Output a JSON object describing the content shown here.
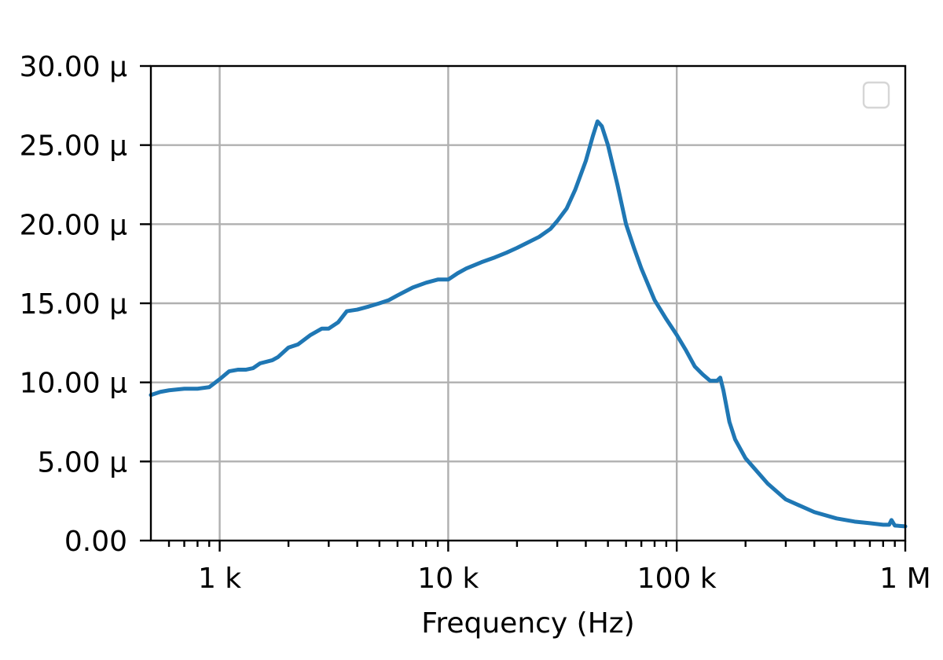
{
  "chart_data": {
    "type": "line",
    "title": "",
    "xlabel": "Frequency (Hz)",
    "ylabel": "",
    "x_scale": "log",
    "xlim": [
      500,
      1000000
    ],
    "ylim": [
      0,
      30
    ],
    "grid": true,
    "legend": {
      "placement": "upper right",
      "entries": []
    },
    "x_ticks": [
      {
        "value": 1000,
        "label": "1 k"
      },
      {
        "value": 10000,
        "label": "10 k"
      },
      {
        "value": 100000,
        "label": "100 k"
      },
      {
        "value": 1000000,
        "label": "1 M"
      }
    ],
    "y_ticks": [
      {
        "value": 0,
        "label": "0.00"
      },
      {
        "value": 5,
        "label": "5.00 µ"
      },
      {
        "value": 10,
        "label": "10.00 µ"
      },
      {
        "value": 15,
        "label": "15.00 µ"
      },
      {
        "value": 20,
        "label": "20.00 µ"
      },
      {
        "value": 25,
        "label": "25.00 µ"
      },
      {
        "value": 30,
        "label": "30.00 µ"
      }
    ],
    "series": [
      {
        "color": "#1f77b4",
        "x": [
          500,
          550,
          600,
          700,
          800,
          900,
          1000,
          1100,
          1200,
          1300,
          1400,
          1500,
          1700,
          1800,
          2000,
          2200,
          2500,
          2800,
          3000,
          3300,
          3600,
          4000,
          4500,
          5000,
          5500,
          6000,
          7000,
          8000,
          9000,
          10000,
          11000,
          12000,
          14000,
          16000,
          18000,
          20000,
          22000,
          25000,
          28000,
          30000,
          33000,
          36000,
          40000,
          43000,
          45000,
          47000,
          50000,
          55000,
          60000,
          65000,
          70000,
          80000,
          90000,
          100000,
          110000,
          120000,
          130000,
          140000,
          150000,
          155000,
          160000,
          170000,
          180000,
          200000,
          250000,
          300000,
          400000,
          500000,
          600000,
          700000,
          800000,
          850000,
          870000,
          900000,
          1000000
        ],
        "y": [
          9.2,
          9.4,
          9.5,
          9.6,
          9.6,
          9.7,
          10.2,
          10.7,
          10.8,
          10.8,
          10.9,
          11.2,
          11.4,
          11.6,
          12.2,
          12.4,
          13.0,
          13.4,
          13.4,
          13.8,
          14.5,
          14.6,
          14.8,
          15.0,
          15.2,
          15.5,
          16.0,
          16.3,
          16.5,
          16.5,
          16.9,
          17.2,
          17.6,
          17.9,
          18.2,
          18.5,
          18.8,
          19.2,
          19.7,
          20.2,
          21.0,
          22.2,
          24.0,
          25.6,
          26.5,
          26.2,
          25.0,
          22.5,
          20.0,
          18.5,
          17.2,
          15.2,
          14.0,
          13.0,
          12.0,
          11.0,
          10.5,
          10.1,
          10.1,
          10.3,
          9.5,
          7.5,
          6.4,
          5.2,
          3.6,
          2.6,
          1.8,
          1.4,
          1.2,
          1.1,
          1.0,
          1.0,
          1.3,
          0.95,
          0.9
        ]
      }
    ]
  }
}
